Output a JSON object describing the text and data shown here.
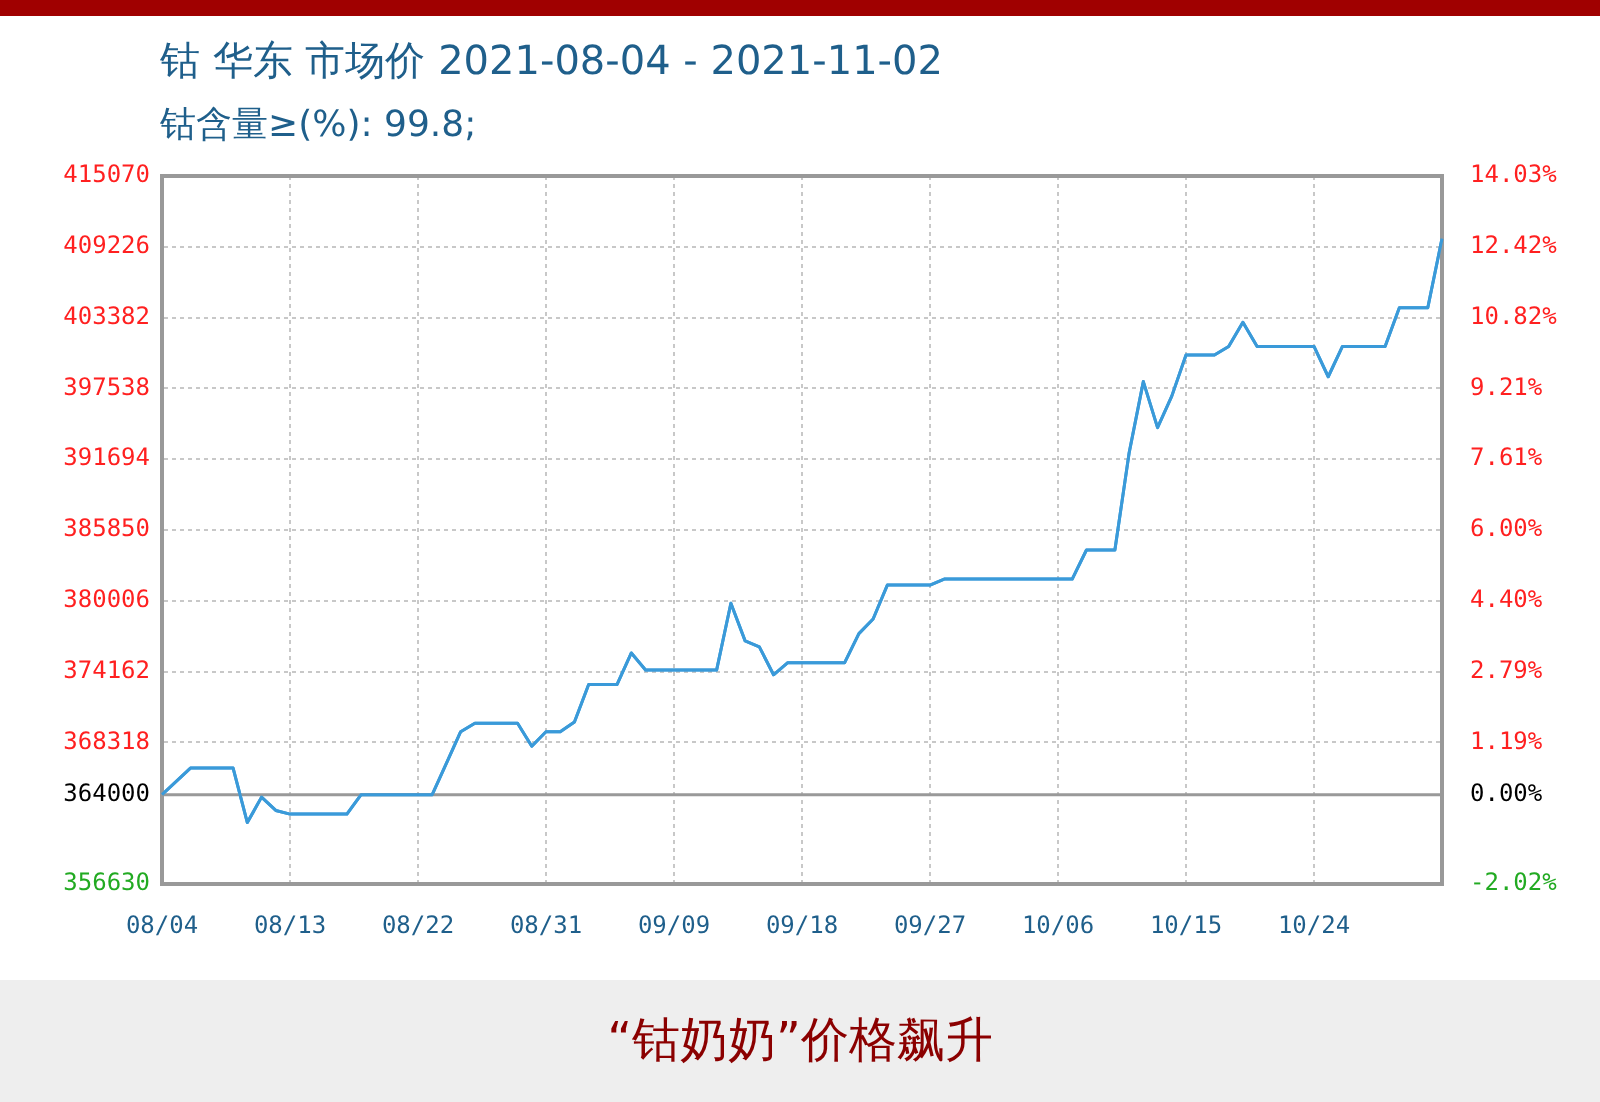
{
  "chart_data": {
    "type": "line",
    "title": "钴 华东 市场价 2021-08-04 - 2021-11-02",
    "subtitle": "钴含量≥(%): 99.8;",
    "annotations": [
      "“钴奶奶”价格飙升"
    ],
    "x": [
      "2021-08-04",
      "2021-08-06",
      "2021-08-09",
      "2021-08-10",
      "2021-08-11",
      "2021-08-12",
      "2021-08-13",
      "2021-08-17",
      "2021-08-18",
      "2021-08-23",
      "2021-08-25",
      "2021-08-26",
      "2021-08-29",
      "2021-08-30",
      "2021-08-31",
      "2021-09-01",
      "2021-09-02",
      "2021-09-03",
      "2021-09-05",
      "2021-09-06",
      "2021-09-07",
      "2021-09-12",
      "2021-09-13",
      "2021-09-14",
      "2021-09-15",
      "2021-09-16",
      "2021-09-17",
      "2021-09-21",
      "2021-09-22",
      "2021-09-23",
      "2021-09-24",
      "2021-09-27",
      "2021-09-28",
      "2021-10-07",
      "2021-10-08",
      "2021-10-10",
      "2021-10-11",
      "2021-10-12",
      "2021-10-13",
      "2021-10-14",
      "2021-10-15",
      "2021-10-17",
      "2021-10-18",
      "2021-10-19",
      "2021-10-20",
      "2021-10-24",
      "2021-10-25",
      "2021-10-26",
      "2021-10-29",
      "2021-10-30",
      "2021-11-01",
      "2021-11-02"
    ],
    "series": [
      {
        "color": "#3a9ad9",
        "values": [
          364000,
          366200,
          366200,
          361700,
          363800,
          362700,
          362400,
          362400,
          364000,
          364000,
          369200,
          369900,
          369900,
          368000,
          369200,
          369200,
          370000,
          373100,
          373100,
          375700,
          374300,
          374300,
          379800,
          376700,
          376200,
          373900,
          374900,
          374900,
          377300,
          378500,
          381300,
          381300,
          381800,
          381800,
          384200,
          384200,
          392200,
          398100,
          394300,
          396900,
          400300,
          400300,
          401000,
          403000,
          401000,
          401000,
          398500,
          401000,
          401000,
          404200,
          404200,
          409900
        ]
      }
    ],
    "xlim": [
      "2021-08-04",
      "2021-11-02"
    ],
    "xticks": [
      {
        "value": "2021-08-04",
        "label": "08/04"
      },
      {
        "value": "2021-08-13",
        "label": "08/13"
      },
      {
        "value": "2021-08-22",
        "label": "08/22"
      },
      {
        "value": "2021-08-31",
        "label": "08/31"
      },
      {
        "value": "2021-09-09",
        "label": "09/09"
      },
      {
        "value": "2021-09-18",
        "label": "09/18"
      },
      {
        "value": "2021-09-27",
        "label": "09/27"
      },
      {
        "value": "2021-10-06",
        "label": "10/06"
      },
      {
        "value": "2021-10-15",
        "label": "10/15"
      },
      {
        "value": "2021-10-24",
        "label": "10/24"
      }
    ],
    "ylim": [
      356630,
      415070
    ],
    "yticks": [
      356630,
      364000,
      368318,
      374162,
      380006,
      385850,
      391694,
      397538,
      403382,
      409226,
      415070
    ],
    "y2lim": [
      -2.02,
      14.03
    ],
    "y2ticks": [
      {
        "value": -2.02,
        "label": "-2.02%"
      },
      {
        "value": 0,
        "label": "0.00%"
      },
      {
        "value": 1.19,
        "label": "1.19%"
      },
      {
        "value": 2.79,
        "label": "2.79%"
      },
      {
        "value": 4.4,
        "label": "4.40%"
      },
      {
        "value": 6,
        "label": "6.00%"
      },
      {
        "value": 7.61,
        "label": "7.61%"
      },
      {
        "value": 9.21,
        "label": "9.21%"
      },
      {
        "value": 10.82,
        "label": "10.82%"
      },
      {
        "value": 12.42,
        "label": "12.42%"
      },
      {
        "value": 14.03,
        "label": "14.03%"
      }
    ],
    "ref_lines": [
      {
        "axis": "y",
        "value": 364000,
        "color": "#999999"
      }
    ],
    "grid": true,
    "legend": false,
    "marker": "none",
    "line_style": "solid"
  }
}
